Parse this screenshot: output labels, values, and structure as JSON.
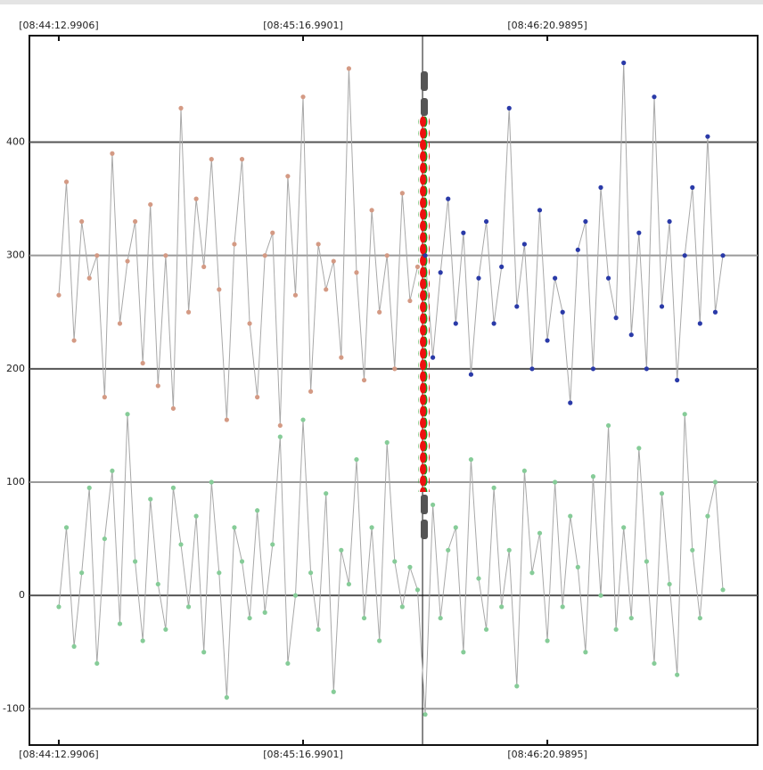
{
  "chart_data": {
    "type": "line",
    "xlim": [
      -7.7,
      183.1
    ],
    "ylim": [
      -132,
      494
    ],
    "xticks": [
      {
        "value": 0,
        "label": "[08:44:12.9906]"
      },
      {
        "value": 63.9995,
        "label": "[08:45:16.9901]"
      },
      {
        "value": 127.9989,
        "label": "[08:46:20.9895]"
      }
    ],
    "yticks": [
      -100,
      0,
      100,
      200,
      300,
      400
    ],
    "grid": true,
    "cursor_x": 95.3,
    "line_color": "#a8a8a8",
    "series": [
      {
        "color": "#d49a84",
        "x": [
          0,
          2,
          4,
          6,
          8,
          10,
          12,
          14,
          16,
          18,
          20,
          22,
          24,
          26,
          28,
          30,
          32,
          34,
          36,
          38,
          40,
          42,
          44,
          46,
          48,
          50,
          52,
          54,
          56,
          58,
          60,
          62,
          64,
          66,
          68,
          70,
          72,
          74,
          76,
          78,
          80,
          82,
          84,
          86,
          88,
          90,
          92,
          94
        ],
        "values": [
          265,
          365,
          225,
          330,
          280,
          300,
          175,
          390,
          240,
          295,
          330,
          205,
          345,
          185,
          300,
          165,
          430,
          250,
          350,
          290,
          385,
          270,
          155,
          310,
          385,
          240,
          175,
          300,
          320,
          150,
          370,
          265,
          440,
          180,
          310,
          270,
          295,
          210,
          465,
          285,
          190,
          340,
          250,
          300,
          200,
          355,
          260,
          290
        ]
      },
      {
        "color": "#2a3aa8",
        "x": [
          96,
          98,
          100,
          102,
          104,
          106,
          108,
          110,
          112,
          114,
          116,
          118,
          120,
          122,
          124,
          126,
          128,
          130,
          132,
          134,
          136,
          138,
          140,
          142,
          144,
          146,
          148,
          150,
          152,
          154,
          156,
          158,
          160,
          162,
          164,
          166,
          168,
          170,
          172,
          174
        ],
        "values": [
          300,
          210,
          285,
          350,
          240,
          320,
          195,
          280,
          330,
          240,
          290,
          430,
          255,
          310,
          200,
          340,
          225,
          280,
          250,
          170,
          305,
          330,
          200,
          360,
          280,
          245,
          470,
          230,
          320,
          200,
          440,
          255,
          330,
          190,
          300,
          360,
          240,
          405,
          250,
          300
        ]
      },
      {
        "color": "#86cc98",
        "x": [
          0,
          2,
          4,
          6,
          8,
          10,
          12,
          14,
          16,
          18,
          20,
          22,
          24,
          26,
          28,
          30,
          32,
          34,
          36,
          38,
          40,
          42,
          44,
          46,
          48,
          50,
          52,
          54,
          56,
          58,
          60,
          62,
          64,
          66,
          68,
          70,
          72,
          74,
          76,
          78,
          80,
          82,
          84,
          86,
          88,
          90,
          92,
          94,
          96,
          98,
          100,
          102,
          104,
          106,
          108,
          110,
          112,
          114,
          116,
          118,
          120,
          122,
          124,
          126,
          128,
          130,
          132,
          134,
          136,
          138,
          140,
          142,
          144,
          146,
          148,
          150,
          152,
          154,
          156,
          158,
          160,
          162,
          164,
          166,
          168,
          170,
          172,
          174
        ],
        "values": [
          -10,
          60,
          -45,
          20,
          95,
          -60,
          50,
          110,
          -25,
          160,
          30,
          -40,
          85,
          10,
          -30,
          95,
          45,
          -10,
          70,
          -50,
          100,
          20,
          -90,
          60,
          30,
          -20,
          75,
          -15,
          45,
          140,
          -60,
          0,
          155,
          20,
          -30,
          90,
          -85,
          40,
          10,
          120,
          -20,
          60,
          -40,
          135,
          30,
          -10,
          25,
          5,
          -105,
          80,
          -20,
          40,
          60,
          -50,
          120,
          15,
          -30,
          95,
          -10,
          40,
          -80,
          110,
          20,
          55,
          -40,
          100,
          -10,
          70,
          25,
          -50,
          105,
          0,
          150,
          -30,
          60,
          -20,
          130,
          30,
          -60,
          90,
          10,
          -70,
          160,
          40,
          -20,
          70,
          100,
          5
        ]
      }
    ]
  }
}
